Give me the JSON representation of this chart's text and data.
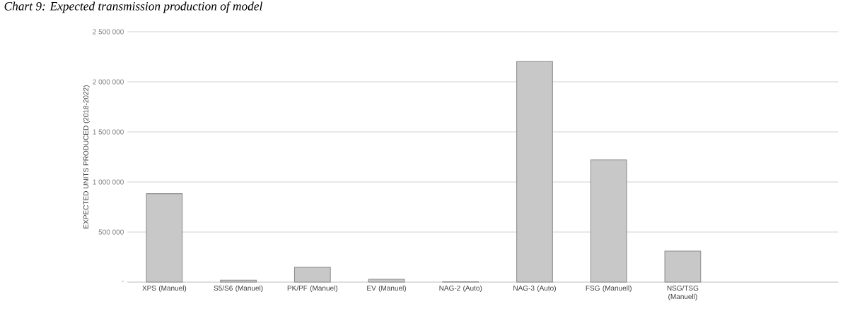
{
  "chart_data": {
    "type": "bar",
    "title": "Chart 9: Expected transmission production of model",
    "ylabel": "EXPECTED UNITS PRODUCED (2018-2022)",
    "categories": [
      "XPS (Manuel)",
      "S5/S6 (Manuel)",
      "PK/PF (Manuel)",
      "EV (Manuel)",
      "NAG-2 (Auto)",
      "NAG-3 (Auto)",
      "FSG (Manuell)",
      "NSG/TSG (Manuell)"
    ],
    "values": [
      883000,
      20000,
      148000,
      28000,
      4000,
      2203000,
      1220000,
      310000
    ],
    "color": "#c8c8c8",
    "ylim": [
      0,
      2500000
    ],
    "yticks": [
      {
        "value": 0,
        "label": "-"
      },
      {
        "value": 500000,
        "label": "500 000"
      },
      {
        "value": 1000000,
        "label": "1 000 000"
      },
      {
        "value": 1500000,
        "label": "1 500 000"
      },
      {
        "value": 2000000,
        "label": "2 000 000"
      },
      {
        "value": 2500000,
        "label": "2 500 000"
      }
    ],
    "grid": "y"
  }
}
